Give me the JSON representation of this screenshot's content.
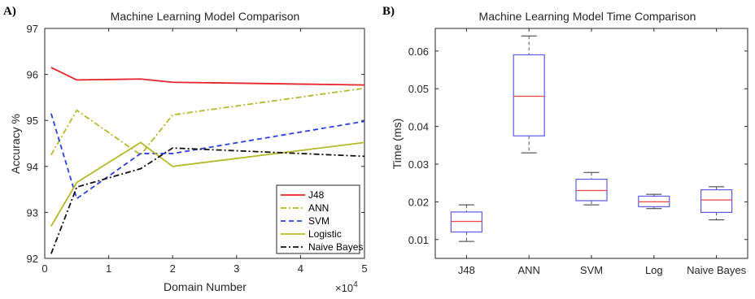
{
  "panels": {
    "a_label": "A)",
    "b_label": "B)"
  },
  "chart_data": [
    {
      "type": "line",
      "title": "Machine Learning Model Comparison",
      "xlabel": "Domain Number",
      "ylabel": "Accuracy %",
      "x_exponent": "×10^4",
      "x_exponent_base": "×10",
      "x_exponent_power": "4",
      "xlim": [
        0,
        5
      ],
      "ylim": [
        92,
        97
      ],
      "x_ticks": [
        "0",
        "1",
        "2",
        "3",
        "4",
        "5"
      ],
      "y_ticks": [
        "92",
        "93",
        "94",
        "95",
        "96",
        "97"
      ],
      "x": [
        0.1,
        0.5,
        1.5,
        2,
        5
      ],
      "legend_position": "bottom-right",
      "grid": false,
      "series": [
        {
          "name": "J48",
          "color": "#e8222a",
          "dash": "solid",
          "values": [
            96.15,
            95.88,
            95.9,
            95.83,
            95.77
          ]
        },
        {
          "name": "ANN",
          "color": "#b5b82a",
          "dash": "dashdot",
          "values": [
            94.25,
            95.22,
            94.25,
            95.12,
            95.7
          ]
        },
        {
          "name": "SVM",
          "color": "#2a3fe0",
          "dash": "dash",
          "values": [
            95.15,
            93.3,
            94.28,
            94.28,
            94.98
          ]
        },
        {
          "name": "Logistic",
          "color": "#b5b82a",
          "dash": "solid",
          "values": [
            92.7,
            93.65,
            94.52,
            94.0,
            94.52
          ]
        },
        {
          "name": "Naive Bayes",
          "color": "#111111",
          "dash": "dashdot",
          "values": [
            92.1,
            93.55,
            93.95,
            94.4,
            94.22
          ]
        }
      ]
    },
    {
      "type": "box",
      "title": "Machine Learning Model Time Comparison",
      "xlabel": "",
      "ylabel": "Time (ms)",
      "ylim": [
        0.005,
        0.066
      ],
      "y_ticks": [
        "0.01",
        "0.02",
        "0.03",
        "0.04",
        "0.05",
        "0.06"
      ],
      "categories": [
        "J48",
        "ANN",
        "SVM",
        "Log",
        "Naive Bayes"
      ],
      "box_color": "#5a5ae6",
      "median_color": "#ee4444",
      "boxes": [
        {
          "min": 0.0095,
          "q1": 0.012,
          "median": 0.0148,
          "q3": 0.0173,
          "max": 0.0192
        },
        {
          "min": 0.033,
          "q1": 0.0375,
          "median": 0.048,
          "q3": 0.059,
          "max": 0.064
        },
        {
          "min": 0.0192,
          "q1": 0.0203,
          "median": 0.023,
          "q3": 0.026,
          "max": 0.0278
        },
        {
          "min": 0.0182,
          "q1": 0.0187,
          "median": 0.02,
          "q3": 0.0215,
          "max": 0.022
        },
        {
          "min": 0.0152,
          "q1": 0.0172,
          "median": 0.0205,
          "q3": 0.0232,
          "max": 0.024
        }
      ]
    }
  ]
}
